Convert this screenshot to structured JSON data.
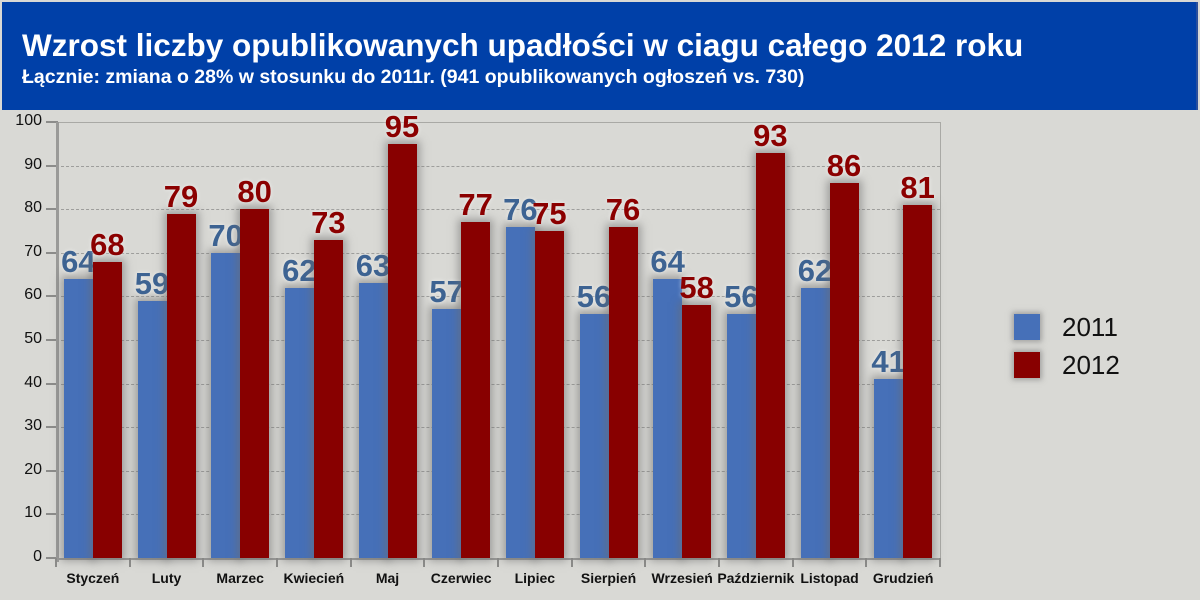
{
  "header": {
    "title": "Wzrost liczby opublikowanych upadłości w ciagu całego 2012 roku",
    "subtitle": "Łącznie: zmiana o 28% w stosunku do  2011r. (941 opublikowanych ogłoszeń vs. 730)"
  },
  "colors": {
    "header_bg": "#0040a8",
    "series_2011": "#4670b8",
    "series_2012": "#880000",
    "background": "#d9d9d5"
  },
  "legend": {
    "items": [
      {
        "label": "2011",
        "color": "#4670b8"
      },
      {
        "label": "2012",
        "color": "#880000"
      }
    ]
  },
  "chart_data": {
    "type": "bar",
    "title": "Wzrost liczby opublikowanych upadłości w ciagu całego 2012 roku",
    "subtitle": "Łącznie: zmiana o 28% w stosunku do  2011r. (941 opublikowanych ogłoszeń vs. 730)",
    "xlabel": "",
    "ylabel": "",
    "ylim": [
      0,
      100
    ],
    "yticks": [
      0,
      10,
      20,
      30,
      40,
      50,
      60,
      70,
      80,
      90,
      100
    ],
    "grid": true,
    "legend_position": "right",
    "categories": [
      "Styczeń",
      "Luty",
      "Marzec",
      "Kwiecień",
      "Maj",
      "Czerwiec",
      "Lipiec",
      "Sierpień",
      "Wrzesień",
      "Październik",
      "Listopad",
      "Grudzień"
    ],
    "series": [
      {
        "name": "2011",
        "color": "#4670b8",
        "values": [
          64,
          59,
          70,
          62,
          63,
          57,
          76,
          56,
          64,
          56,
          62,
          41
        ]
      },
      {
        "name": "2012",
        "color": "#880000",
        "values": [
          68,
          79,
          80,
          73,
          95,
          77,
          75,
          76,
          58,
          93,
          86,
          81
        ]
      }
    ]
  }
}
